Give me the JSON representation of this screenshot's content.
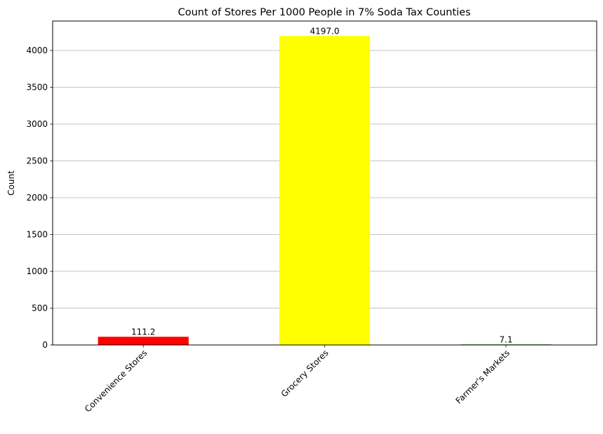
{
  "chart_data": {
    "type": "bar",
    "title": "Count of Stores Per 1000 People in 7% Soda Tax Counties",
    "xlabel": "",
    "ylabel": "Count",
    "categories": [
      "Convenience Stores",
      "Grocery Stores",
      "Farmer's Markets"
    ],
    "values": [
      111.2,
      4197.0,
      7.1
    ],
    "value_labels": [
      "111.2",
      "4197.0",
      "7.1"
    ],
    "colors": [
      "#ff0000",
      "#ffff00",
      "#008000"
    ],
    "ylim": [
      0,
      4400
    ],
    "yticks": [
      0,
      500,
      1000,
      1500,
      2000,
      2500,
      3000,
      3500,
      4000
    ],
    "grid": "y-axis only",
    "legend": "none"
  }
}
